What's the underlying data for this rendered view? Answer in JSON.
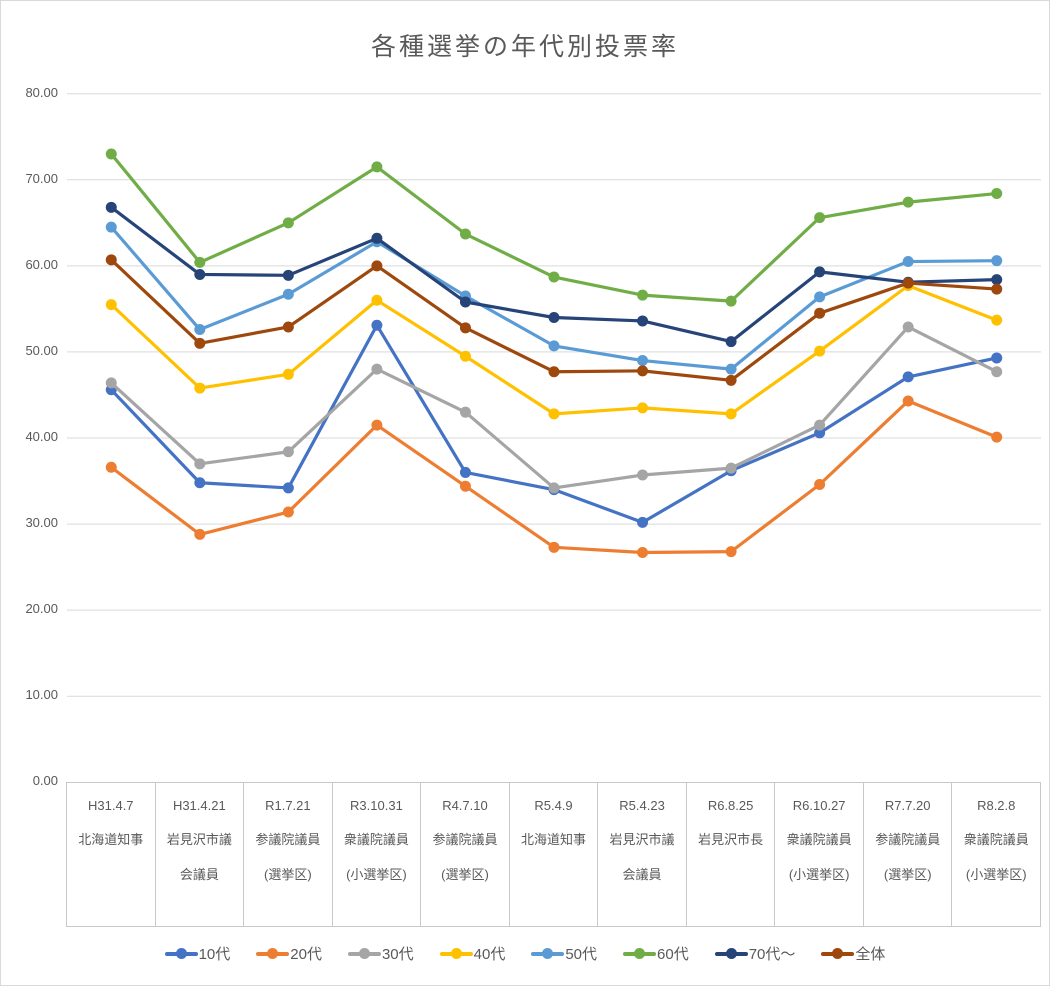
{
  "chart_data": {
    "type": "line",
    "title": "各種選挙の年代別投票率",
    "xlabel": "",
    "ylabel": "",
    "ylim": [
      0,
      80
    ],
    "grid": true,
    "marker": "circle",
    "legend_position": "bottom",
    "y_axis": {
      "min": 0,
      "max": 80,
      "step": 10,
      "tick_labels": [
        "0.00",
        "10.00",
        "20.00",
        "30.00",
        "40.00",
        "50.00",
        "60.00",
        "70.00",
        "80.00"
      ]
    },
    "categories": [
      {
        "date": "H31.4.7",
        "name": "北海道知事"
      },
      {
        "date": "H31.4.21",
        "name": "岩見沢市議会議員"
      },
      {
        "date": "R1.7.21",
        "name": "参議院議員(選挙区)"
      },
      {
        "date": "R3.10.31",
        "name": "衆議院議員(小選挙区)"
      },
      {
        "date": "R4.7.10",
        "name": "参議院議員(選挙区)"
      },
      {
        "date": "R5.4.9",
        "name": "北海道知事"
      },
      {
        "date": "R5.4.23",
        "name": "岩見沢市議会議員"
      },
      {
        "date": "R6.8.25",
        "name": "岩見沢市長"
      },
      {
        "date": "R6.10.27",
        "name": "衆議院議員(小選挙区)"
      },
      {
        "date": "R7.7.20",
        "name": "参議院議員(選挙区)"
      },
      {
        "date": "R8.2.8",
        "name": "衆議院議員(小選挙区)"
      }
    ],
    "series": [
      {
        "name": "10代",
        "color": "#4472C4",
        "values": [
          45.6,
          34.8,
          34.2,
          53.1,
          36.0,
          34.0,
          30.2,
          36.2,
          40.6,
          47.1,
          49.3
        ]
      },
      {
        "name": "20代",
        "color": "#ED7D31",
        "values": [
          36.6,
          28.8,
          31.4,
          41.5,
          34.4,
          27.3,
          26.7,
          26.8,
          34.6,
          44.3,
          40.1
        ]
      },
      {
        "name": "30代",
        "color": "#A5A5A5",
        "values": [
          46.4,
          37.0,
          38.4,
          48.0,
          43.0,
          34.2,
          35.7,
          36.5,
          41.5,
          52.9,
          47.7
        ]
      },
      {
        "name": "40代",
        "color": "#FFC000",
        "values": [
          55.5,
          45.8,
          47.4,
          56.0,
          49.5,
          42.8,
          43.5,
          42.8,
          50.1,
          57.7,
          53.7
        ]
      },
      {
        "name": "50代",
        "color": "#5B9BD5",
        "values": [
          64.5,
          52.6,
          56.7,
          62.8,
          56.5,
          50.7,
          49.0,
          48.0,
          56.4,
          60.5,
          60.6
        ]
      },
      {
        "name": "60代",
        "color": "#70AD47",
        "values": [
          73.0,
          60.4,
          65.0,
          71.5,
          63.7,
          58.7,
          56.6,
          55.9,
          65.6,
          67.4,
          68.4
        ]
      },
      {
        "name": "70代〜",
        "color": "#264478",
        "values": [
          66.8,
          59.0,
          58.9,
          63.2,
          55.8,
          54.0,
          53.6,
          51.2,
          59.3,
          58.1,
          58.4
        ]
      },
      {
        "name": "全体",
        "color": "#9E480E",
        "values": [
          60.7,
          51.0,
          52.9,
          60.0,
          52.8,
          47.7,
          47.8,
          46.7,
          54.5,
          58.0,
          57.3
        ]
      }
    ],
    "colors": {
      "gridline": "#d9d9d9",
      "axis_text": "#595959",
      "table_border": "#c9c9c9"
    }
  }
}
